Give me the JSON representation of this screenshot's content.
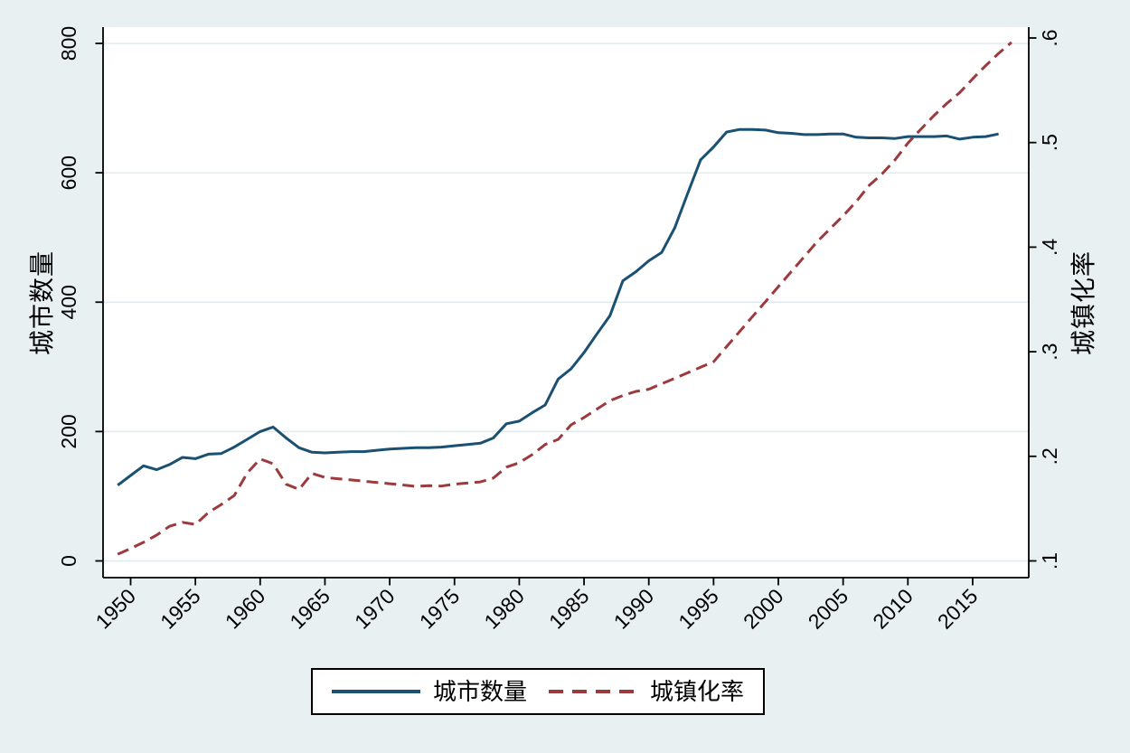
{
  "figure": {
    "background_color": "#e9f0f2",
    "plot_background_color": "#ffffff",
    "grid_color": "#dfeaee",
    "axis_color": "#000000",
    "text_color": "#000000"
  },
  "chart_data": {
    "type": "line",
    "title": "",
    "grid": "horizontal",
    "x_axis": {
      "tick_labels": [
        "1950",
        "1955",
        "1960",
        "1965",
        "1970",
        "1975",
        "1980",
        "1985",
        "1990",
        "1995",
        "2000",
        "2005",
        "2010",
        "2015"
      ],
      "tick_values": [
        1950,
        1955,
        1960,
        1965,
        1970,
        1975,
        1980,
        1985,
        1990,
        1995,
        2000,
        2005,
        2010,
        2015
      ],
      "label_angle_degrees": 45
    },
    "left_axis": {
      "title": "城市数量",
      "tick_labels": [
        "0",
        "200",
        "400",
        "600",
        "800"
      ],
      "tick_values": [
        0,
        200,
        400,
        600,
        800
      ],
      "range": [
        0,
        800
      ]
    },
    "right_axis": {
      "title": "城镇化率",
      "tick_labels": [
        ".1",
        ".2",
        ".3",
        ".4",
        ".5",
        ".6"
      ],
      "tick_values": [
        0.1,
        0.2,
        0.3,
        0.4,
        0.5,
        0.6
      ],
      "range": [
        0.1,
        0.6
      ]
    },
    "legend": {
      "position": "bottom",
      "entries": [
        "城市数量",
        "城镇化率"
      ]
    },
    "series": [
      {
        "name": "城市数量",
        "axis": "left",
        "line_style": "solid",
        "color": "#1a5072",
        "start_year": 1949,
        "values": [
          117,
          132,
          147,
          141,
          149,
          160,
          158,
          165,
          166,
          176,
          188,
          200,
          207,
          190,
          175,
          168,
          167,
          168,
          169,
          169,
          171,
          173,
          174,
          175,
          175,
          176,
          178,
          180,
          182,
          190,
          212,
          216,
          229,
          241,
          281,
          297,
          322,
          351,
          379,
          433,
          447,
          464,
          477,
          515,
          568,
          620,
          640,
          663,
          667,
          667,
          666,
          662,
          661,
          659,
          659,
          660,
          660,
          655,
          654,
          654,
          653,
          656,
          656,
          656,
          657,
          652,
          655,
          656,
          660
        ]
      },
      {
        "name": "城镇化率",
        "axis": "right",
        "line_style": "dashed",
        "color": "#9c3a3e",
        "start_year": 1949,
        "values": [
          0.1064,
          0.1118,
          0.1178,
          0.1246,
          0.1331,
          0.1369,
          0.1348,
          0.1462,
          0.1539,
          0.1625,
          0.1841,
          0.1975,
          0.1929,
          0.1733,
          0.1684,
          0.1837,
          0.1798,
          0.1786,
          0.1774,
          0.1762,
          0.175,
          0.1738,
          0.1726,
          0.1713,
          0.172,
          0.1716,
          0.1734,
          0.1744,
          0.1755,
          0.1792,
          0.1896,
          0.1939,
          0.2016,
          0.2113,
          0.2162,
          0.2301,
          0.2371,
          0.2452,
          0.2532,
          0.2581,
          0.2621,
          0.2641,
          0.2694,
          0.2746,
          0.2799,
          0.2851,
          0.2904,
          0.3048,
          0.3191,
          0.3335,
          0.3478,
          0.3622,
          0.3766,
          0.3909,
          0.4053,
          0.4176,
          0.4299,
          0.4434,
          0.4589,
          0.4699,
          0.4834,
          0.4995,
          0.5127,
          0.5257,
          0.5373,
          0.5477,
          0.561,
          0.5735,
          0.5852,
          0.5958
        ]
      }
    ]
  }
}
